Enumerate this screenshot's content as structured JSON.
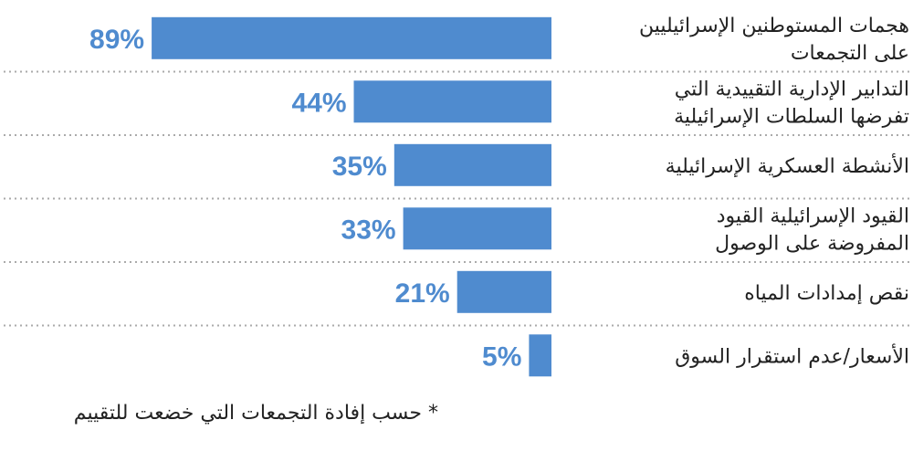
{
  "chart_data": {
    "type": "bar",
    "orientation": "horizontal",
    "categories": [
      [
        "هجمات المستوطنين الإسرائيليين",
        "على التجمعات"
      ],
      [
        "التدابير الإدارية التقييدية التي",
        "تفرضها السلطات الإسرائيلية"
      ],
      [
        "الأنشطة العسكرية الإسرائيلية"
      ],
      [
        "القيود الإسرائيلية القيود",
        "المفروضة على الوصول"
      ],
      [
        "نقص إمدادات المياه"
      ],
      [
        "الأسعار/عدم استقرار السوق"
      ]
    ],
    "values": [
      89,
      44,
      35,
      33,
      21,
      5
    ],
    "value_labels": [
      "89%",
      "44%",
      "35%",
      "33%",
      "21%",
      "5%"
    ],
    "xlim": [
      0,
      100
    ],
    "grid": false,
    "row_separators": "dotted",
    "bar_color": "#4f8bcf",
    "value_label_color": "#4f8bcf",
    "separator_color": "#aaaaaa",
    "text_color": "#222222"
  },
  "footnote": "* حسب إفادة التجمعات التي خضعت للتقييم"
}
